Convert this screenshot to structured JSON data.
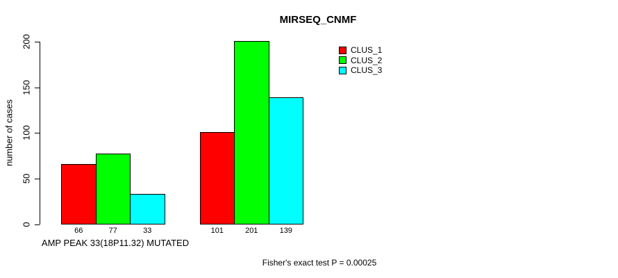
{
  "chart_data": {
    "type": "bar",
    "title": "MIRSEQ_CNMF",
    "xlabel": "",
    "ylabel": "number of cases",
    "ylim": [
      0,
      200
    ],
    "yticks": [
      0,
      50,
      100,
      150,
      200
    ],
    "grid": false,
    "group_labels": [
      "AMP PEAK 33(18P11.32) MUTATED",
      ""
    ],
    "series": [
      {
        "name": "CLUS_1",
        "color": "#ff0000",
        "values": [
          66,
          101
        ]
      },
      {
        "name": "CLUS_2",
        "color": "#00ff00",
        "values": [
          77,
          201
        ]
      },
      {
        "name": "CLUS_3",
        "color": "#00ffff",
        "values": [
          33,
          139
        ]
      }
    ],
    "bar_value_labels": [
      [
        66,
        77,
        33
      ],
      [
        101,
        201,
        139
      ]
    ],
    "legend": {
      "position": "top-right",
      "entries": [
        "CLUS_1",
        "CLUS_2",
        "CLUS_3"
      ]
    },
    "footnote": "Fisher's exact test P = 0.00025"
  },
  "colors": {
    "background": "#ffffff",
    "text": "#000000",
    "axis": "#000000",
    "bar_border": "#000000",
    "clus_1": "#ff0000",
    "clus_2": "#00ff00",
    "clus_3": "#00ffff"
  }
}
